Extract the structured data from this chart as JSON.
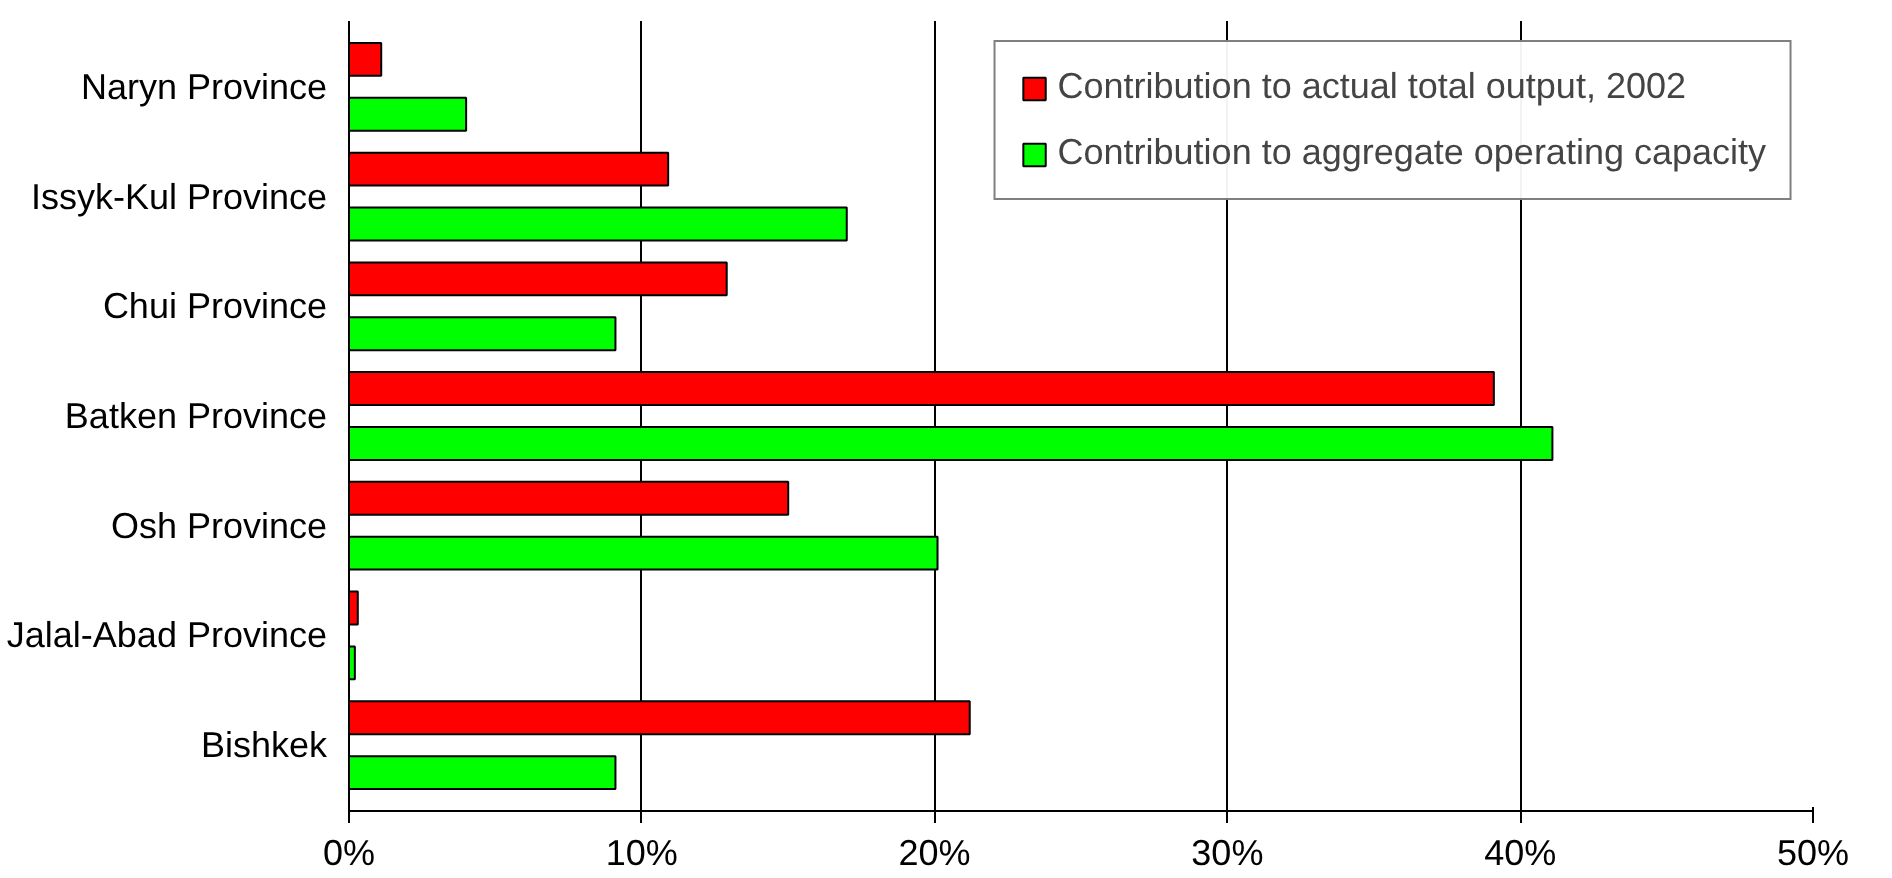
{
  "chart_data": {
    "type": "bar",
    "orientation": "horizontal",
    "categories": [
      "Naryn Province",
      "Issyk-Kul Province",
      "Chui Province",
      "Batken Province",
      "Osh Province",
      "Jalal-Abad Province",
      "Bishkek"
    ],
    "series": [
      {
        "name": "Contribution to actual total output, 2002",
        "color": "#ff0000",
        "values": [
          1.1,
          10.9,
          12.9,
          39.1,
          15.0,
          0.3,
          21.2
        ]
      },
      {
        "name": "Contribution to aggregate operating capacity",
        "color": "#00ff00",
        "values": [
          4.0,
          17.0,
          9.1,
          41.1,
          20.1,
          0.2,
          9.1
        ]
      }
    ],
    "xlim": [
      0,
      50
    ],
    "xticks": [
      {
        "value": 0,
        "label": "0%"
      },
      {
        "value": 10,
        "label": "10%"
      },
      {
        "value": 20,
        "label": "20%"
      },
      {
        "value": 30,
        "label": "30%"
      },
      {
        "value": 40,
        "label": "40%"
      },
      {
        "value": 50,
        "label": "50%"
      }
    ],
    "grid": "x",
    "legend": "top right"
  }
}
